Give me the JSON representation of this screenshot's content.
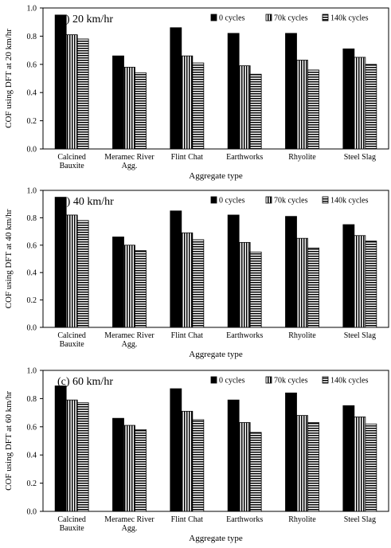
{
  "colors": {
    "axis": "#000000",
    "bar_0": "#000000",
    "bar_stripe": "#000000",
    "bar_stripe_bg": "#ffffff"
  },
  "legend_entries": [
    "0 cycles",
    "70k cycles",
    "140k cycles"
  ],
  "chart_data": [
    {
      "type": "bar",
      "title": "(a) 20 km/hr",
      "xlabel": "Aggregate type",
      "ylabel": "COF using DFT at 20 km/hr",
      "ylim": [
        0,
        1.0
      ],
      "yticks": [
        "0.0",
        "0.2",
        "0.4",
        "0.6",
        "0.8",
        "1.0"
      ],
      "categories": [
        [
          "Calcined",
          "Bauxite"
        ],
        [
          "Meramec River",
          "Agg."
        ],
        [
          "Flint Chat"
        ],
        [
          "Earthworks"
        ],
        [
          "Rhyolite"
        ],
        [
          "Steel Slag"
        ]
      ],
      "series": [
        {
          "name": "0 cycles",
          "values": [
            0.95,
            0.66,
            0.86,
            0.82,
            0.82,
            0.71
          ]
        },
        {
          "name": "70k cycles",
          "values": [
            0.81,
            0.58,
            0.66,
            0.59,
            0.63,
            0.65
          ]
        },
        {
          "name": "140k cycles",
          "values": [
            0.78,
            0.54,
            0.61,
            0.53,
            0.56,
            0.6
          ]
        }
      ],
      "grid": false,
      "legend": "top-right"
    },
    {
      "type": "bar",
      "title": "(b) 40 km/hr",
      "xlabel": "Aggregate type",
      "ylabel": "COF using DFT at 40 km/hr",
      "ylim": [
        0,
        1.0
      ],
      "yticks": [
        "0.0",
        "0.2",
        "0.4",
        "0.6",
        "0.8",
        "1.0"
      ],
      "categories": [
        [
          "Calcined",
          "Bauxite"
        ],
        [
          "Meramec River",
          "Agg."
        ],
        [
          "Flint Chat"
        ],
        [
          "Earthworks"
        ],
        [
          "Rhyolite"
        ],
        [
          "Steel Slag"
        ]
      ],
      "series": [
        {
          "name": "0 cycles",
          "values": [
            0.95,
            0.66,
            0.85,
            0.82,
            0.81,
            0.75
          ]
        },
        {
          "name": "70k cycles",
          "values": [
            0.82,
            0.6,
            0.69,
            0.62,
            0.65,
            0.67
          ]
        },
        {
          "name": "140k cycles",
          "values": [
            0.78,
            0.56,
            0.64,
            0.55,
            0.58,
            0.63
          ]
        }
      ],
      "grid": false,
      "legend": "top-right"
    },
    {
      "type": "bar",
      "title": "(c) 60 km/hr",
      "xlabel": "Aggregate type",
      "ylabel": "COF using DFT at 60 km/hr",
      "ylim": [
        0,
        1.0
      ],
      "yticks": [
        "0.0",
        "0.2",
        "0.4",
        "0.6",
        "0.8",
        "1.0"
      ],
      "categories": [
        [
          "Calcined",
          "Bauxite"
        ],
        [
          "Meramec River",
          "Agg."
        ],
        [
          "Flint Chat"
        ],
        [
          "Earthworks"
        ],
        [
          "Rhyolite"
        ],
        [
          "Steel Slag"
        ]
      ],
      "series": [
        {
          "name": "0 cycles",
          "values": [
            0.89,
            0.66,
            0.87,
            0.79,
            0.84,
            0.75
          ]
        },
        {
          "name": "70k cycles",
          "values": [
            0.79,
            0.61,
            0.71,
            0.63,
            0.68,
            0.67
          ]
        },
        {
          "name": "140k cycles",
          "values": [
            0.77,
            0.58,
            0.65,
            0.56,
            0.63,
            0.62
          ]
        }
      ],
      "grid": false,
      "legend": "top-right"
    }
  ]
}
